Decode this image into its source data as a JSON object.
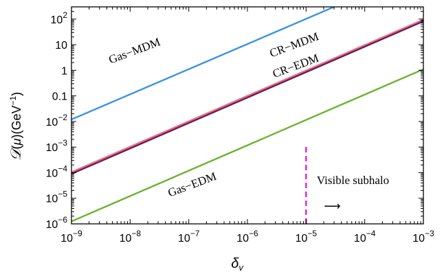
{
  "chart_data": {
    "type": "line",
    "xlabel": "δ_v",
    "ylabel": "𝒟(μ) (GeV⁻¹)",
    "x_scale": "log",
    "y_scale": "log",
    "xlim": [
      1e-09,
      0.001
    ],
    "ylim": [
      1e-06,
      300
    ],
    "grid": false,
    "x_ticks": [
      {
        "value": 1e-09,
        "base": "10",
        "exp": "−9"
      },
      {
        "value": 1e-08,
        "base": "10",
        "exp": "−8"
      },
      {
        "value": 1e-07,
        "base": "10",
        "exp": "−7"
      },
      {
        "value": 1e-06,
        "base": "10",
        "exp": "−6"
      },
      {
        "value": 1e-05,
        "base": "10",
        "exp": "−5"
      },
      {
        "value": 0.0001,
        "base": "10",
        "exp": "−4"
      },
      {
        "value": 0.001,
        "base": "10",
        "exp": "−3"
      }
    ],
    "y_ticks": [
      {
        "value": 1e-06,
        "base": "10",
        "exp": "−6"
      },
      {
        "value": 1e-05,
        "base": "10",
        "exp": "−5"
      },
      {
        "value": 0.0001,
        "base": "10",
        "exp": "−4"
      },
      {
        "value": 0.001,
        "base": "10",
        "exp": "−3"
      },
      {
        "value": 0.01,
        "base": "10",
        "exp": "−2"
      },
      {
        "value": 0.1,
        "base": "0.1",
        "exp": ""
      },
      {
        "value": 1,
        "base": "1",
        "exp": ""
      },
      {
        "value": 10,
        "base": "10",
        "exp": ""
      },
      {
        "value": 100,
        "base": "10",
        "exp": "2"
      }
    ],
    "series": [
      {
        "name": "Gas−MDM",
        "color": "#3a93e2",
        "x": [
          1e-09,
          3e-05
        ],
        "y": [
          0.012,
          300
        ]
      },
      {
        "name": "CR−MDM",
        "color": "#e8737c",
        "x": [
          1e-09,
          0.001
        ],
        "y": [
          0.000105,
          95
        ]
      },
      {
        "name": "CR−EDM",
        "color": "#6a1a5e",
        "x": [
          1e-09,
          0.001
        ],
        "y": [
          9e-05,
          82
        ]
      },
      {
        "name": "Gas−EDM",
        "color": "#6ab22e",
        "x": [
          1e-09,
          0.001
        ],
        "y": [
          1.25e-06,
          1.1
        ]
      }
    ],
    "reference_line": {
      "x": 1e-05,
      "y": [
        1e-06,
        0.0012
      ],
      "color": "#e020e0",
      "style": "dashed"
    },
    "annotations": [
      {
        "text": "Gas−MDM",
        "x": 1.25e-08,
        "y": 4.2,
        "angle": -20.5
      },
      {
        "text": "CR−MDM",
        "x": 6.6e-06,
        "y": 7.2,
        "angle": -20.5
      },
      {
        "text": "CR−EDM",
        "x": 7e-06,
        "y": 1.08,
        "angle": -20.5
      },
      {
        "text": "Gas−EDM",
        "x": 1.2e-07,
        "y": 2.5e-05,
        "angle": -20.5
      },
      {
        "text": "Visible subhalo",
        "x": 6.3e-05,
        "y": 3.6e-05,
        "angle": 0
      },
      {
        "text": "⟶",
        "x": 2.8e-05,
        "y": 3.6e-06,
        "angle": 0
      }
    ]
  }
}
